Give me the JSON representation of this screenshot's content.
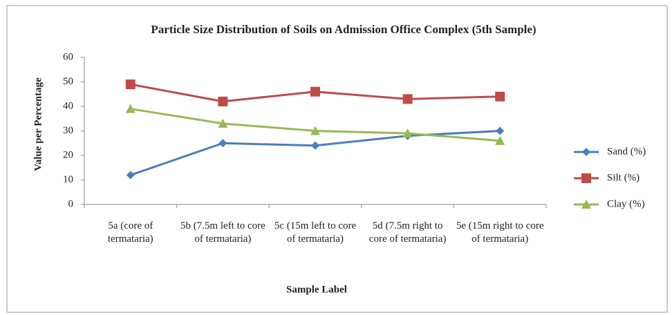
{
  "chart_data": {
    "type": "line",
    "title": "Particle Size Distribution of Soils on Admission Office Complex (5th Sample)",
    "x_label": "Sample Label",
    "y_label": "Value per Percentage",
    "categories": [
      "5a (core of termataria)",
      "5b (7.5m left to core of termataria)",
      "5c (15m left to core of termataria)",
      "5d (7.5m right to core of termataria)",
      "5e (15m right to core of termataria)"
    ],
    "series": [
      {
        "name": "Sand (%)",
        "color": "#4a7ebb",
        "marker": "diamond",
        "values": [
          12,
          25,
          24,
          28,
          30
        ]
      },
      {
        "name": "Silt (%)",
        "color": "#be4b48",
        "marker": "square",
        "values": [
          49,
          42,
          46,
          43,
          44
        ]
      },
      {
        "name": "Clay (%)",
        "color": "#98b954",
        "marker": "triangle",
        "values": [
          39,
          33,
          30,
          29,
          26
        ]
      }
    ],
    "ylim": [
      0,
      60
    ],
    "yticks": [
      0,
      10,
      20,
      30,
      40,
      50,
      60
    ],
    "grid": false,
    "legend": "right"
  }
}
